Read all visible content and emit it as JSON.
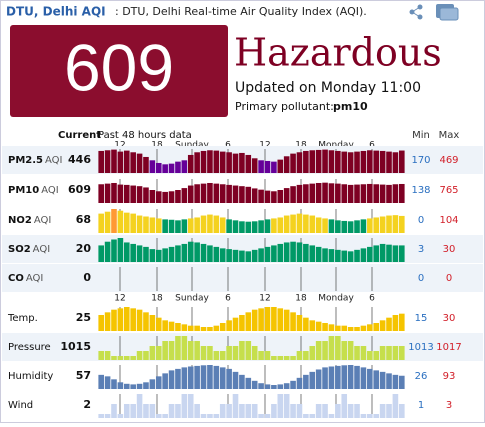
{
  "header": {
    "title": "DTU, Delhi AQI",
    "subtitle": ": DTU, Delhi Real-time Air Quality Index (AQI)."
  },
  "summary": {
    "aqi": 609,
    "level": "Hazardous",
    "updated": "Updated on Monday 11:00",
    "pollutant_label": "Primary pollutant:",
    "pollutant": "pm10",
    "color": "#8b0d2e"
  },
  "table": {
    "current_header": "Current",
    "history_header": "Past 48 hours data",
    "min_header": "Min",
    "max_header": "Max",
    "time_labels": [
      "12",
      "18",
      "Sunday",
      "6",
      "12",
      "18",
      "Monday",
      "6"
    ],
    "aqi_colors": [
      {
        "max": 50,
        "color": "#009966"
      },
      {
        "max": 100,
        "color": "#f4d21f"
      },
      {
        "max": 150,
        "color": "#ff9933"
      },
      {
        "max": 200,
        "color": "#cc0033"
      },
      {
        "max": 300,
        "color": "#660099"
      },
      {
        "max": 1000,
        "color": "#7e0023"
      }
    ],
    "rows": [
      {
        "name": "PM2.5",
        "unit": "AQI",
        "current": 446,
        "min": 170,
        "max": 469,
        "scale": "aqi",
        "values": [
          440,
          450,
          460,
          430,
          445,
          420,
          400,
          350,
          300,
          260,
          240,
          250,
          280,
          300,
          380,
          420,
          440,
          450,
          445,
          430,
          420,
          400,
          410,
          380,
          330,
          300,
          290,
          280,
          310,
          360,
          400,
          420,
          440,
          450,
          455,
          460,
          450,
          440,
          430,
          420,
          430,
          440,
          450,
          445,
          440,
          430,
          420,
          446
        ]
      },
      {
        "name": "PM10",
        "unit": "AQI",
        "current": 609,
        "min": 138,
        "max": 765,
        "scale": "aqi",
        "values": [
          600,
          620,
          640,
          590,
          580,
          560,
          540,
          500,
          420,
          380,
          360,
          380,
          420,
          480,
          560,
          600,
          620,
          640,
          620,
          600,
          580,
          560,
          540,
          520,
          470,
          430,
          400,
          380,
          420,
          480,
          540,
          580,
          600,
          620,
          640,
          650,
          630,
          620,
          600,
          580,
          590,
          600,
          610,
          600,
          590,
          580,
          600,
          609
        ]
      },
      {
        "name": "NO2",
        "unit": "AQI",
        "current": 68,
        "min": 0,
        "max": 104,
        "scale": "aqi",
        "values": [
          80,
          90,
          104,
          95,
          85,
          80,
          70,
          65,
          60,
          55,
          50,
          48,
          45,
          50,
          55,
          60,
          70,
          75,
          70,
          60,
          50,
          45,
          40,
          38,
          40,
          45,
          50,
          55,
          60,
          70,
          75,
          80,
          75,
          70,
          60,
          55,
          50,
          45,
          42,
          40,
          45,
          50,
          55,
          60,
          65,
          70,
          72,
          68
        ]
      },
      {
        "name": "SO2",
        "unit": "AQI",
        "current": 20,
        "min": 3,
        "max": 30,
        "scale": "aqi",
        "values": [
          20,
          25,
          28,
          30,
          24,
          22,
          20,
          18,
          15,
          14,
          16,
          18,
          20,
          22,
          25,
          24,
          22,
          20,
          18,
          16,
          15,
          14,
          13,
          12,
          14,
          16,
          18,
          20,
          22,
          24,
          25,
          24,
          22,
          20,
          18,
          16,
          15,
          14,
          13,
          12,
          14,
          16,
          18,
          20,
          22,
          21,
          20,
          20
        ]
      },
      {
        "name": "CO",
        "unit": "AQI",
        "current": 0,
        "min": 0,
        "max": 0,
        "scale": "aqi",
        "values": []
      },
      {
        "name": "Temp.",
        "current": 25,
        "min": 15,
        "max": 30,
        "color": "#f5c400",
        "values": [
          24,
          26,
          28,
          29,
          30,
          29,
          28,
          26,
          24,
          22,
          20,
          19,
          18,
          17,
          16,
          16,
          15,
          15,
          16,
          18,
          20,
          22,
          24,
          26,
          28,
          29,
          30,
          30,
          29,
          28,
          26,
          24,
          22,
          20,
          19,
          18,
          17,
          16,
          16,
          15,
          15,
          16,
          17,
          18,
          20,
          22,
          24,
          25
        ]
      },
      {
        "name": "Pressure",
        "current": 1015,
        "min": 1013,
        "max": 1017,
        "color": "#c6df4c",
        "values": [
          1014,
          1014,
          1013,
          1013,
          1013,
          1013,
          1014,
          1014,
          1015,
          1015,
          1016,
          1016,
          1017,
          1017,
          1016,
          1016,
          1015,
          1015,
          1014,
          1014,
          1015,
          1015,
          1016,
          1016,
          1015,
          1014,
          1014,
          1013,
          1013,
          1013,
          1013,
          1014,
          1014,
          1015,
          1016,
          1016,
          1017,
          1017,
          1016,
          1016,
          1015,
          1015,
          1014,
          1014,
          1015,
          1015,
          1015,
          1015
        ]
      },
      {
        "name": "Humidity",
        "current": 57,
        "min": 26,
        "max": 93,
        "color": "#5b7fb5",
        "values": [
          60,
          55,
          45,
          35,
          30,
          28,
          30,
          35,
          45,
          55,
          65,
          75,
          80,
          85,
          88,
          90,
          92,
          93,
          90,
          85,
          80,
          70,
          60,
          50,
          40,
          32,
          28,
          26,
          28,
          32,
          40,
          50,
          60,
          70,
          78,
          85,
          88,
          90,
          92,
          93,
          90,
          85,
          80,
          75,
          70,
          65,
          60,
          57
        ]
      },
      {
        "name": "Wind",
        "current": 2,
        "min": 1,
        "max": 3,
        "color": "#c9d6f0",
        "values": [
          1,
          1,
          2,
          1,
          2,
          2,
          3,
          2,
          2,
          1,
          1,
          2,
          2,
          3,
          3,
          2,
          1,
          1,
          1,
          2,
          2,
          3,
          2,
          2,
          2,
          1,
          1,
          2,
          3,
          3,
          2,
          2,
          1,
          1,
          2,
          2,
          1,
          2,
          3,
          2,
          2,
          1,
          1,
          1,
          2,
          2,
          3,
          2
        ]
      }
    ]
  }
}
